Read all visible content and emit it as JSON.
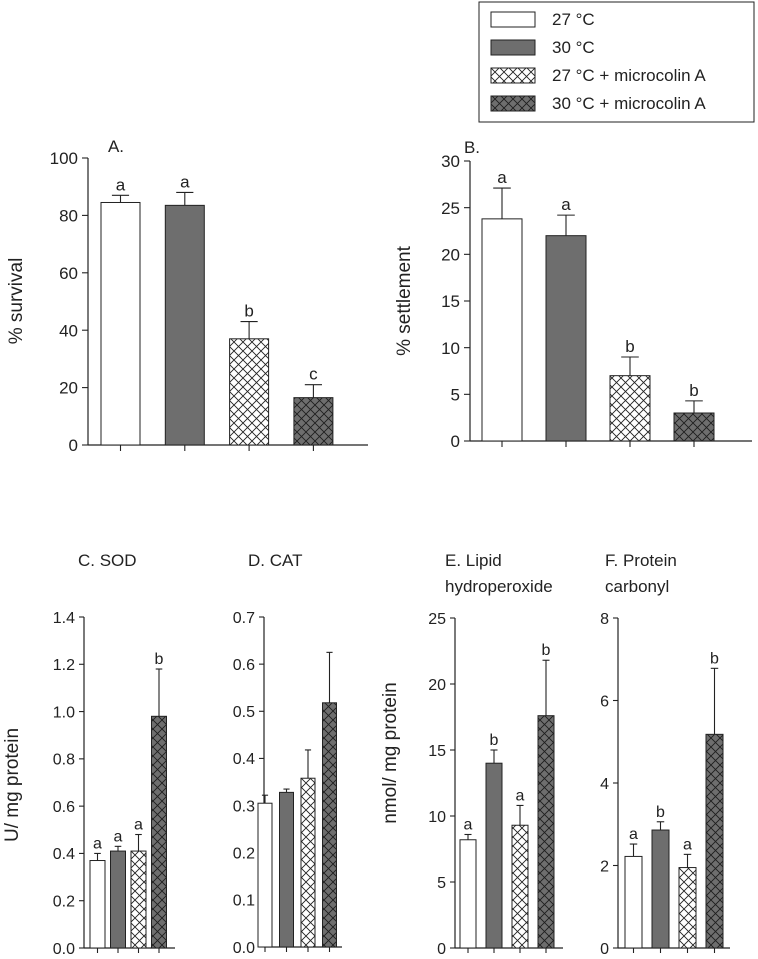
{
  "colors": {
    "white": "#ffffff",
    "gray": "#6e6e6e",
    "hatch_light": "#ffffff",
    "hatch_dark": "#6e6e6e",
    "ink": "#222222"
  },
  "legend": {
    "entries": [
      {
        "label": "27 °C",
        "style": "white"
      },
      {
        "label": "30 °C",
        "style": "gray"
      },
      {
        "label": "27 °C + microcolin A",
        "style": "hatch_light"
      },
      {
        "label": "30 °C + microcolin A",
        "style": "hatch_dark"
      }
    ]
  },
  "chart_data": [
    {
      "id": "A",
      "type": "bar",
      "title": "",
      "panel_label": "A.",
      "title_lines": [],
      "ylabel": "% survival",
      "ylim": [
        0,
        100
      ],
      "yticks": [
        "0",
        "20",
        "40",
        "60",
        "80",
        "100"
      ],
      "categories": [
        "27 °C",
        "30 °C",
        "27 °C + microcolin A",
        "30 °C + microcolin A"
      ],
      "values": [
        84.5,
        83.5,
        37,
        16.5
      ],
      "errors": [
        2.5,
        4.5,
        6,
        4.5
      ],
      "sig": [
        "a",
        "a",
        "b",
        "c"
      ]
    },
    {
      "id": "B",
      "type": "bar",
      "title": "",
      "panel_label": "B.",
      "title_lines": [],
      "ylabel": "% settlement",
      "ylim": [
        0,
        30
      ],
      "yticks": [
        "0",
        "5",
        "10",
        "15",
        "20",
        "25",
        "30"
      ],
      "categories": [
        "27 °C",
        "30 °C",
        "27 °C + microcolin A",
        "30 °C + microcolin A"
      ],
      "values": [
        23.8,
        22,
        7,
        3
      ],
      "errors": [
        3.3,
        2.2,
        2,
        1.3
      ],
      "sig": [
        "a",
        "a",
        "b",
        "b"
      ]
    },
    {
      "id": "C",
      "type": "bar",
      "panel_label": "",
      "title_lines": [
        "C. SOD"
      ],
      "ylabel": "U/ mg protein",
      "ylim": [
        0,
        1.4
      ],
      "yticks": [
        "0.0",
        "0.2",
        "0.4",
        "0.6",
        "0.8",
        "1.0",
        "1.2",
        "1.4"
      ],
      "categories": [
        "27 °C",
        "30 °C",
        "27 °C + microcolin A",
        "30 °C + microcolin A"
      ],
      "values": [
        0.37,
        0.41,
        0.41,
        0.98
      ],
      "errors": [
        0.03,
        0.02,
        0.07,
        0.2
      ],
      "sig": [
        "a",
        "a",
        "a",
        "b"
      ]
    },
    {
      "id": "D",
      "type": "bar",
      "panel_label": "",
      "title_lines": [
        "D. CAT"
      ],
      "ylabel": "",
      "ylim": [
        0,
        0.7
      ],
      "yticks": [
        "0.0",
        "0.1",
        "0.2",
        "0.3",
        "0.4",
        "0.5",
        "0.6",
        "0.7"
      ],
      "categories": [
        "27 °C",
        "30 °C",
        "27 °C + microcolin A",
        "30 °C + microcolin A"
      ],
      "values": [
        0.305,
        0.328,
        0.358,
        0.518
      ],
      "errors": [
        0.017,
        0.007,
        0.06,
        0.107
      ],
      "sig": [
        "",
        "",
        "",
        ""
      ]
    },
    {
      "id": "E",
      "type": "bar",
      "panel_label": "",
      "title_lines": [
        "E. Lipid",
        "hydroperoxide"
      ],
      "ylabel": "nmol/ mg protein",
      "ylim": [
        0,
        25
      ],
      "yticks": [
        "0",
        "5",
        "10",
        "15",
        "20",
        "25"
      ],
      "categories": [
        "27 °C",
        "30 °C",
        "27 °C + microcolin A",
        "30 °C + microcolin A"
      ],
      "values": [
        8.2,
        14,
        9.3,
        17.6
      ],
      "errors": [
        0.4,
        1,
        1.5,
        4.2
      ],
      "sig": [
        "a",
        "b",
        "a",
        "b"
      ]
    },
    {
      "id": "F",
      "type": "bar",
      "panel_label": "",
      "title_lines": [
        "F. Protein",
        "carbonyl"
      ],
      "ylabel": "",
      "ylim": [
        0,
        8
      ],
      "yticks": [
        "0",
        "2",
        "4",
        "6",
        "8"
      ],
      "categories": [
        "27 °C",
        "30 °C",
        "27 °C + microcolin A",
        "30 °C + microcolin A"
      ],
      "values": [
        2.22,
        2.86,
        1.95,
        5.18
      ],
      "errors": [
        0.3,
        0.2,
        0.32,
        1.6
      ],
      "sig": [
        "a",
        "b",
        "a",
        "b"
      ]
    }
  ]
}
